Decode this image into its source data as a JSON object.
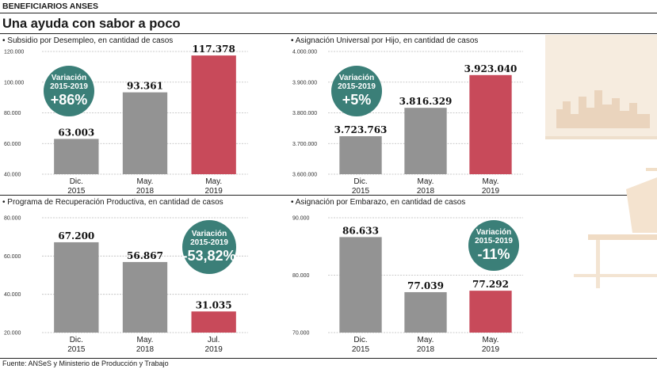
{
  "header": {
    "kicker": "BENEFICIARIOS ANSES",
    "title": "Una ayuda con sabor a poco"
  },
  "source": "Fuente: ANSeS y Ministerio de Producción y Trabajo",
  "colors": {
    "bar_gray": "#939393",
    "bar_red": "#c84a5a",
    "badge": "#3b7f78",
    "grid": "#bbbbbb",
    "deco": "#f4e6d6"
  },
  "chart_data": [
    {
      "type": "bar",
      "title": "• Subsidio por Desempleo, en cantidad de casos",
      "categories": [
        [
          "Dic.",
          "2015"
        ],
        [
          "May.",
          "2018"
        ],
        [
          "May.",
          "2019"
        ]
      ],
      "values": [
        63003,
        93361,
        117378
      ],
      "labels": [
        "63.003",
        "93.361",
        "117.378"
      ],
      "highlight_last": true,
      "ylim": [
        40000,
        120000
      ],
      "yticks": [
        40000,
        60000,
        80000,
        100000,
        120000
      ],
      "ytick_labels": [
        "40.000",
        "60.000",
        "80.000",
        "100.000",
        "120.000"
      ],
      "badge": {
        "label1": "Variación",
        "label2": "2015-2019",
        "value": "+86%"
      }
    },
    {
      "type": "bar",
      "title": "• Asignación Universal por Hijo, en cantidad de casos",
      "categories": [
        [
          "Dic.",
          "2015"
        ],
        [
          "May.",
          "2018"
        ],
        [
          "May.",
          "2019"
        ]
      ],
      "values": [
        3723763,
        3816329,
        3923040
      ],
      "labels": [
        "3.723.763",
        "3.816.329",
        "3.923.040"
      ],
      "highlight_last": true,
      "ylim": [
        3600000,
        4000000
      ],
      "yticks": [
        3600000,
        3700000,
        3800000,
        3900000,
        4000000
      ],
      "ytick_labels": [
        "3.600.000",
        "3.700.000",
        "3.800.000",
        "3.900.000",
        "4.000.000"
      ],
      "badge": {
        "label1": "Variación",
        "label2": "2015-2019",
        "value": "+5%"
      }
    },
    {
      "type": "bar",
      "title": "• Programa de Recuperación Productiva, en cantidad de casos",
      "categories": [
        [
          "Dic.",
          "2015"
        ],
        [
          "May.",
          "2018"
        ],
        [
          "Jul.",
          "2019"
        ]
      ],
      "values": [
        67200,
        56867,
        31035
      ],
      "labels": [
        "67.200",
        "56.867",
        "31.035"
      ],
      "highlight_last": true,
      "ylim": [
        20000,
        80000
      ],
      "yticks": [
        20000,
        40000,
        60000,
        80000
      ],
      "ytick_labels": [
        "20.000",
        "40.000",
        "60.000",
        "80.000"
      ],
      "badge": {
        "label1": "Variación",
        "label2": "2015-2019",
        "value": "-53,82%"
      }
    },
    {
      "type": "bar",
      "title": "• Asignación por Embarazo, en cantidad de casos",
      "categories": [
        [
          "Dic.",
          "2015"
        ],
        [
          "May.",
          "2018"
        ],
        [
          "May.",
          "2019"
        ]
      ],
      "values": [
        86633,
        77039,
        77292
      ],
      "labels": [
        "86.633",
        "77.039",
        "77.292"
      ],
      "highlight_last": true,
      "ylim": [
        70000,
        90000
      ],
      "yticks": [
        70000,
        80000,
        90000
      ],
      "ytick_labels": [
        "70.000",
        "80.000",
        "90.000"
      ],
      "badge": {
        "label1": "Variación",
        "label2": "2015-2019",
        "value": "-11%"
      }
    }
  ]
}
